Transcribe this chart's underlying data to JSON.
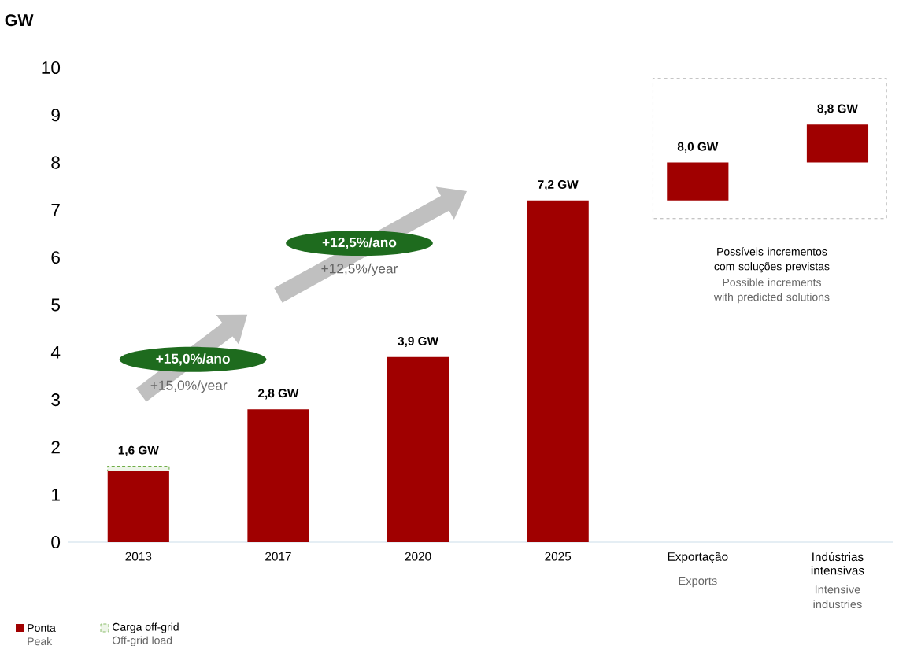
{
  "chart_data": {
    "type": "bar",
    "ylabel": "GW",
    "categories": [
      "2013",
      "2017",
      "2020",
      "2025",
      "Exportação",
      "Indústrias intensivas"
    ],
    "series": [
      {
        "name": "Ponta",
        "color": "#a00000",
        "values": [
          1.5,
          2.8,
          3.9,
          7.2,
          0.8,
          0.8
        ],
        "base": [
          0,
          0,
          0,
          0,
          7.2,
          8.0
        ]
      },
      {
        "name": "Carga off-grid",
        "color": "#70ad47",
        "values": [
          0.1,
          null,
          null,
          null,
          null,
          null
        ]
      }
    ],
    "stacked": true,
    "totals": [
      "1,6 GW",
      "2,8 GW",
      "3,9 GW",
      "7,2 GW",
      null,
      null
    ],
    "ylim": [
      0,
      10
    ],
    "yticks": [
      0,
      1,
      2,
      3,
      4,
      5,
      6,
      7,
      8,
      9,
      10
    ],
    "legend": "bottom left",
    "annotations": [
      "+15,0%/ano",
      "+15,0%/year",
      "+12,5%/ano",
      "+12,5%/year",
      "Possíveis incrementos com soluções previstas",
      "Possible increments with predicted solutions",
      "Exports",
      "Intensive industries",
      "Peak",
      "Off-grid load",
      {
        "text": "8,0 GW",
        "x": "Exportação",
        "y": 8.0
      },
      {
        "text": "8,8 GW",
        "x": "Indústrias intensivas",
        "y": 8.8
      }
    ]
  }
}
